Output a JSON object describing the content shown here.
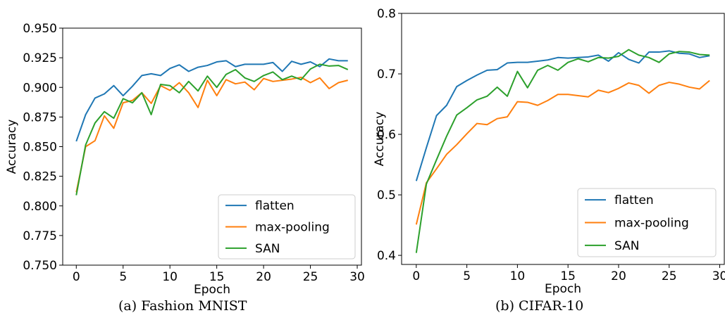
{
  "chart_data": [
    {
      "type": "line",
      "caption": "(a) Fashion MNIST",
      "xlabel": "Epoch",
      "ylabel": "Accuracy",
      "xlim": [
        -1.45,
        30.45
      ],
      "ylim": [
        0.75,
        0.95
      ],
      "xticks": [
        0,
        5,
        10,
        15,
        20,
        25,
        30
      ],
      "yticks": [
        0.75,
        0.775,
        0.8,
        0.825,
        0.85,
        0.875,
        0.9,
        0.925,
        0.95
      ],
      "ytick_labels": [
        "0.750",
        "0.775",
        "0.800",
        "0.825",
        "0.850",
        "0.875",
        "0.900",
        "0.925",
        "0.950"
      ],
      "grid": false,
      "legend": "bottom-right",
      "x": [
        0,
        1,
        2,
        3,
        4,
        5,
        6,
        7,
        8,
        9,
        10,
        11,
        12,
        13,
        14,
        15,
        16,
        17,
        18,
        19,
        20,
        21,
        22,
        23,
        24,
        25,
        26,
        27,
        28,
        29
      ],
      "series": [
        {
          "name": "flatten",
          "color": "#1f77b4",
          "values": [
            0.8545,
            0.877,
            0.891,
            0.8945,
            0.9015,
            0.893,
            0.901,
            0.91,
            0.9115,
            0.91,
            0.916,
            0.919,
            0.9135,
            0.917,
            0.9185,
            0.9215,
            0.9225,
            0.9175,
            0.9195,
            0.9195,
            0.9195,
            0.921,
            0.9135,
            0.922,
            0.9195,
            0.9215,
            0.9175,
            0.924,
            0.9225,
            0.9225
          ]
        },
        {
          "name": "max-pooling",
          "color": "#ff7f0e",
          "values": [
            0.8115,
            0.85,
            0.855,
            0.876,
            0.8655,
            0.887,
            0.889,
            0.8955,
            0.8865,
            0.9015,
            0.8975,
            0.904,
            0.8955,
            0.883,
            0.906,
            0.893,
            0.9065,
            0.903,
            0.9045,
            0.898,
            0.9075,
            0.905,
            0.906,
            0.907,
            0.9085,
            0.904,
            0.908,
            0.899,
            0.904,
            0.906
          ]
        },
        {
          "name": "SAN",
          "color": "#2ca02c",
          "values": [
            0.809,
            0.8515,
            0.87,
            0.8795,
            0.874,
            0.8905,
            0.887,
            0.8955,
            0.877,
            0.9025,
            0.9015,
            0.8955,
            0.905,
            0.897,
            0.9095,
            0.9,
            0.911,
            0.915,
            0.908,
            0.905,
            0.91,
            0.913,
            0.9065,
            0.9095,
            0.9065,
            0.9155,
            0.9195,
            0.918,
            0.9185,
            0.915
          ]
        }
      ]
    },
    {
      "type": "line",
      "caption": "(b) CIFAR-10",
      "xlabel": "Epoch",
      "ylabel": "Accuracy",
      "xlim": [
        -1.45,
        30.45
      ],
      "ylim": [
        0.385,
        0.8
      ],
      "xticks": [
        0,
        5,
        10,
        15,
        20,
        25,
        30
      ],
      "yticks": [
        0.4,
        0.5,
        0.6,
        0.7,
        0.8
      ],
      "ytick_labels": [
        "0.4",
        "0.5",
        "0.6",
        "0.7",
        "0.8"
      ],
      "grid": false,
      "legend": "bottom-right",
      "x": [
        0,
        1,
        2,
        3,
        4,
        5,
        6,
        7,
        8,
        9,
        10,
        11,
        12,
        13,
        14,
        15,
        16,
        17,
        18,
        19,
        20,
        21,
        22,
        23,
        24,
        25,
        26,
        27,
        28,
        29
      ],
      "series": [
        {
          "name": "flatten",
          "color": "#1f77b4",
          "values": [
            0.523,
            0.578,
            0.631,
            0.648,
            0.679,
            0.689,
            0.698,
            0.706,
            0.707,
            0.718,
            0.719,
            0.719,
            0.721,
            0.723,
            0.727,
            0.726,
            0.727,
            0.728,
            0.731,
            0.721,
            0.735,
            0.724,
            0.718,
            0.736,
            0.736,
            0.738,
            0.734,
            0.733,
            0.727,
            0.73
          ]
        },
        {
          "name": "max-pooling",
          "color": "#ff7f0e",
          "values": [
            0.451,
            0.52,
            0.543,
            0.567,
            0.583,
            0.601,
            0.618,
            0.616,
            0.626,
            0.629,
            0.654,
            0.653,
            0.648,
            0.656,
            0.666,
            0.666,
            0.664,
            0.662,
            0.673,
            0.669,
            0.676,
            0.685,
            0.681,
            0.668,
            0.681,
            0.686,
            0.683,
            0.678,
            0.675,
            0.689
          ]
        },
        {
          "name": "SAN",
          "color": "#2ca02c",
          "values": [
            0.404,
            0.518,
            0.558,
            0.597,
            0.632,
            0.644,
            0.657,
            0.663,
            0.678,
            0.663,
            0.704,
            0.677,
            0.706,
            0.714,
            0.706,
            0.719,
            0.725,
            0.72,
            0.727,
            0.726,
            0.729,
            0.74,
            0.731,
            0.727,
            0.719,
            0.733,
            0.737,
            0.736,
            0.732,
            0.731
          ]
        }
      ]
    }
  ]
}
